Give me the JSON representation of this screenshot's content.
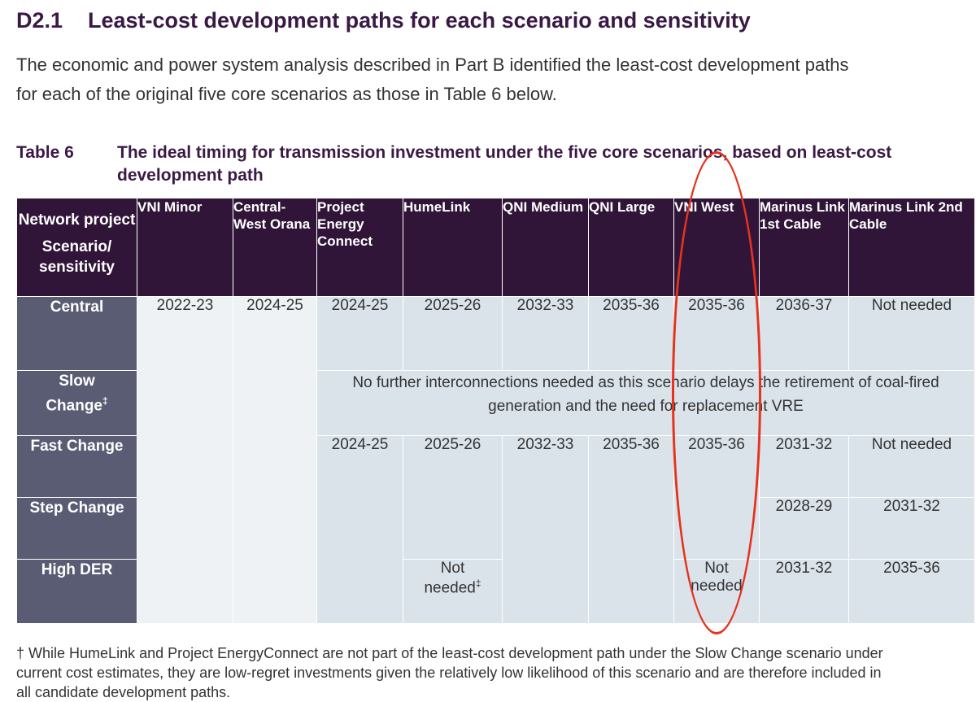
{
  "heading": {
    "number": "D2.1",
    "title": "Least-cost development paths for each scenario and sensitivity"
  },
  "intro": {
    "line1": "The economic and power system analysis described in Part B identified the least-cost development paths",
    "line2": "for each of the original five core scenarios as those in Table 6 below."
  },
  "caption": {
    "label": "Table 6",
    "line1": "The ideal timing for transmission investment under the five core scenarios, based on least-cost",
    "line2": "development path"
  },
  "table": {
    "corner": {
      "top": "Network project",
      "bottom": "Scenario/ sensitivity"
    },
    "columns": [
      "VNI Minor",
      "Central-West Orana",
      "Project Energy Connect",
      "HumeLink",
      "QNI Medium",
      "QNI Large",
      "VNI West",
      "Marinus Link 1st Cable",
      "Marinus Link 2nd Cable"
    ],
    "rows": {
      "central": {
        "label": "Central",
        "values": [
          "2022-23",
          "2024-25",
          "2024-25",
          "2025-26",
          "2032-33",
          "2035-36",
          "2035-36",
          "2036-37",
          "Not needed"
        ]
      },
      "slow": {
        "label_line1": "Slow",
        "label_line2": "Change",
        "label_mark": "‡",
        "note_line1": "No further interconnections needed as this scenario delays the retirement of coal-fired",
        "note_line2": "generation and the need for replacement VRE"
      },
      "fast": {
        "label": "Fast Change",
        "values": [
          "2024-25",
          "2025-26",
          "2032-33",
          "2035-36",
          "2035-36",
          "2031-32",
          "Not needed"
        ]
      },
      "step": {
        "label": "Step Change",
        "values": [
          "2028-29",
          "2031-32"
        ]
      },
      "der": {
        "label": "High DER",
        "humelink_line1": "Not",
        "humelink_line2": "needed",
        "humelink_mark": "‡",
        "vniwest_line1": "Not",
        "vniwest_line2": "needed",
        "marinus1": "2031-32",
        "marinus2": "2035-36"
      }
    }
  },
  "footnote": {
    "mark": "†",
    "line1": "While HumeLink and Project EnergyConnect are not part of the least-cost development path under the Slow Change scenario under",
    "line2": "current cost estimates, they are low-regret investments given the relatively low likelihood of this scenario and are therefore included in",
    "line3": "all candidate development paths."
  },
  "annotation": {
    "color": "#e5331e"
  }
}
